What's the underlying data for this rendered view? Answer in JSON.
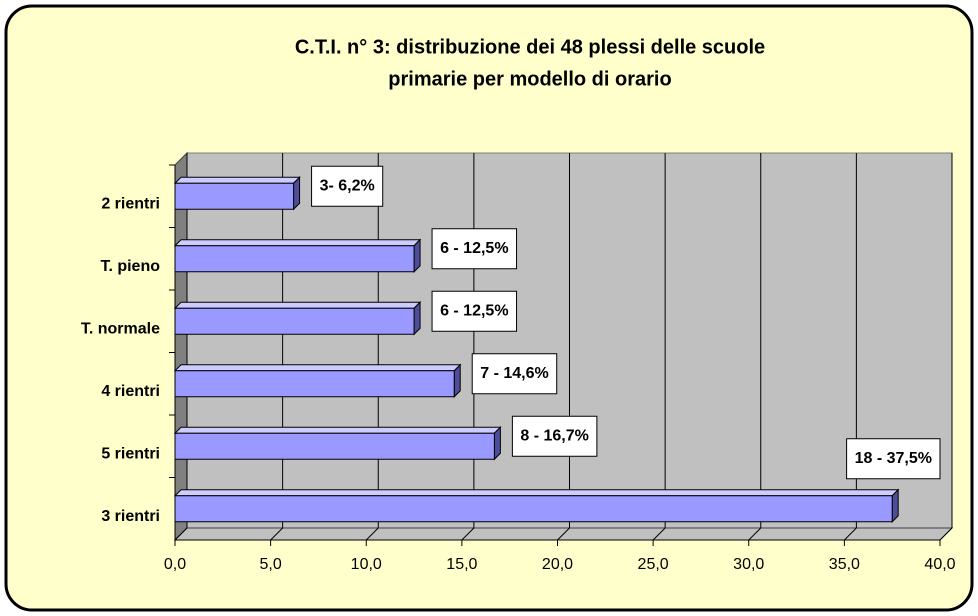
{
  "chart_data": {
    "type": "bar3d-horizontal",
    "title": [
      "C.T.I. n° 3: distribuzione dei 48 plessi delle scuole",
      "primarie per modello di orario"
    ],
    "categories": [
      "2 rientri",
      "T. pieno",
      "T. normale",
      "4 rientri",
      "5 rientri",
      "3 rientri"
    ],
    "values": [
      6.2,
      12.5,
      12.5,
      14.6,
      16.7,
      37.5
    ],
    "value_labels": [
      "3- 6,2%",
      "6 - 12,5%",
      "6 - 12,5%",
      "7 - 14,6%",
      "8 - 16,7%",
      "18 - 37,5%"
    ],
    "color": "#9999ff",
    "xlim": [
      0,
      40
    ],
    "xticks": [
      {
        "value": 0,
        "label": "0,0"
      },
      {
        "value": 5,
        "label": "5,0"
      },
      {
        "value": 10,
        "label": "10,0"
      },
      {
        "value": 15,
        "label": "15,0"
      },
      {
        "value": 20,
        "label": "20,0"
      },
      {
        "value": 25,
        "label": "25,0"
      },
      {
        "value": 30,
        "label": "30,0"
      },
      {
        "value": 35,
        "label": "35,0"
      },
      {
        "value": 40,
        "label": "40,0"
      }
    ],
    "grid": true
  }
}
